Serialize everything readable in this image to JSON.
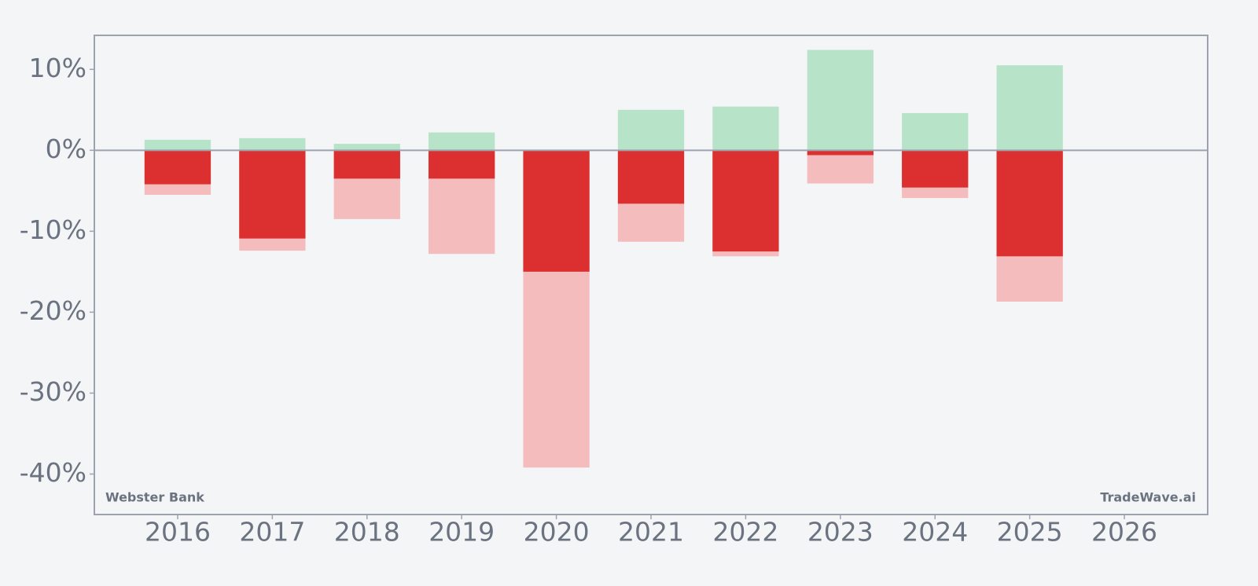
{
  "chart_data": {
    "type": "bar",
    "categories": [
      "2016",
      "2017",
      "2018",
      "2019",
      "2020",
      "2021",
      "2022",
      "2023",
      "2024",
      "2025",
      "2026"
    ],
    "series": [
      {
        "color": "#b7e3c8",
        "values": [
          1.3,
          1.5,
          0.8,
          2.2,
          0,
          5.0,
          5.4,
          12.4,
          4.6,
          10.5,
          null
        ]
      },
      {
        "color": "#f4bcbc",
        "values": [
          -5.5,
          -12.4,
          -8.5,
          -12.8,
          -39.2,
          -11.3,
          -13.1,
          -4.1,
          -5.9,
          -18.7,
          null
        ]
      },
      {
        "color": "#dc2f2f",
        "values": [
          -4.2,
          -10.9,
          -3.5,
          -3.5,
          -15.0,
          -6.6,
          -12.5,
          -0.6,
          -4.6,
          -13.1,
          null
        ]
      }
    ],
    "ylim": [
      -45,
      14.2
    ],
    "yticks": [
      {
        "value": 10,
        "label": "10%"
      },
      {
        "value": 0,
        "label": "0%"
      },
      {
        "value": -10,
        "label": "-10%"
      },
      {
        "value": -20,
        "label": "-20%"
      },
      {
        "value": -30,
        "label": "-30%"
      },
      {
        "value": -40,
        "label": "-40%"
      }
    ],
    "annotations": [
      "Webster Bank",
      "TradeWave.ai"
    ]
  }
}
